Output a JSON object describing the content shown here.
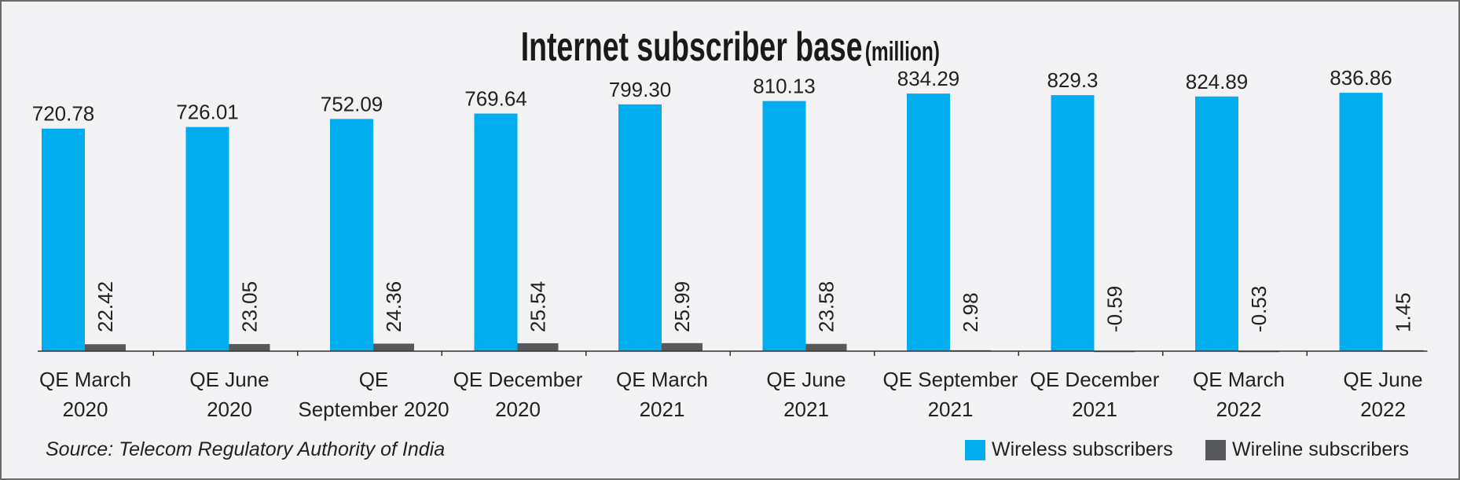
{
  "chart_data": {
    "type": "bar",
    "title": "Internet subscriber base",
    "title_unit": "(million)",
    "categories": [
      [
        "QE March",
        "2020"
      ],
      [
        "QE June",
        "2020"
      ],
      [
        "QE",
        "September 2020"
      ],
      [
        "QE December",
        "2020"
      ],
      [
        "QE March",
        "2021"
      ],
      [
        "QE June",
        "2021"
      ],
      [
        "QE September",
        "2021"
      ],
      [
        "QE December",
        "2021"
      ],
      [
        "QE March",
        "2022"
      ],
      [
        "QE June",
        "2022"
      ]
    ],
    "series": [
      {
        "name": "Wireless subscribers",
        "color": "#00aeef",
        "values": [
          720.78,
          726.01,
          752.09,
          769.64,
          799.3,
          810.13,
          834.29,
          829.3,
          824.89,
          836.86
        ],
        "labels": [
          "720.78",
          "726.01",
          "752.09",
          "769.64",
          "799.30",
          "810.13",
          "834.29",
          "829.3",
          "824.89",
          "836.86"
        ]
      },
      {
        "name": "Wireline subscribers",
        "color": "#58595b",
        "values": [
          22.42,
          23.05,
          24.36,
          25.54,
          25.99,
          23.58,
          2.98,
          -0.59,
          -0.53,
          1.45
        ],
        "labels": [
          "22.42",
          "23.05",
          "24.36",
          "25.54",
          "25.99",
          "23.58",
          "2.98",
          "-0.59",
          "-0.53",
          "1.45"
        ]
      }
    ],
    "ylim": [
      0,
      900
    ],
    "grid": false,
    "legend_position": "bottom-right",
    "source": "Source: Telecom Regulatory Authority of India"
  }
}
